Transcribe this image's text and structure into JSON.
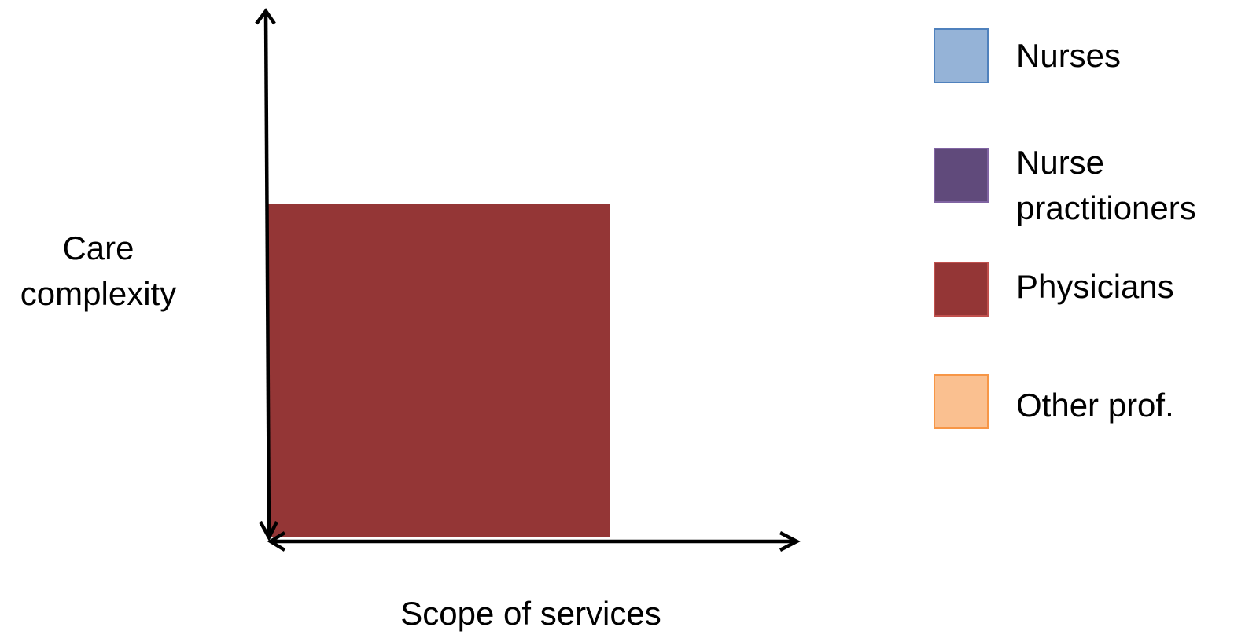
{
  "diagram": {
    "y_axis_label": [
      "Care",
      "complexity"
    ],
    "x_axis_label": "Scope of services",
    "box_color": "#943636",
    "axis_color": "#000000"
  },
  "legend": [
    {
      "label_lines": [
        "Nurses"
      ],
      "fill": "#95b3d7",
      "border": "#4f81bd"
    },
    {
      "label_lines": [
        "Nurse",
        "practitioners"
      ],
      "fill": "#604a7b",
      "border": "#8064a2"
    },
    {
      "label_lines": [
        "Physicians"
      ],
      "fill": "#943636",
      "border": "#c0504d"
    },
    {
      "label_lines": [
        "Other prof."
      ],
      "fill": "#fac090",
      "border": "#f79646"
    }
  ]
}
